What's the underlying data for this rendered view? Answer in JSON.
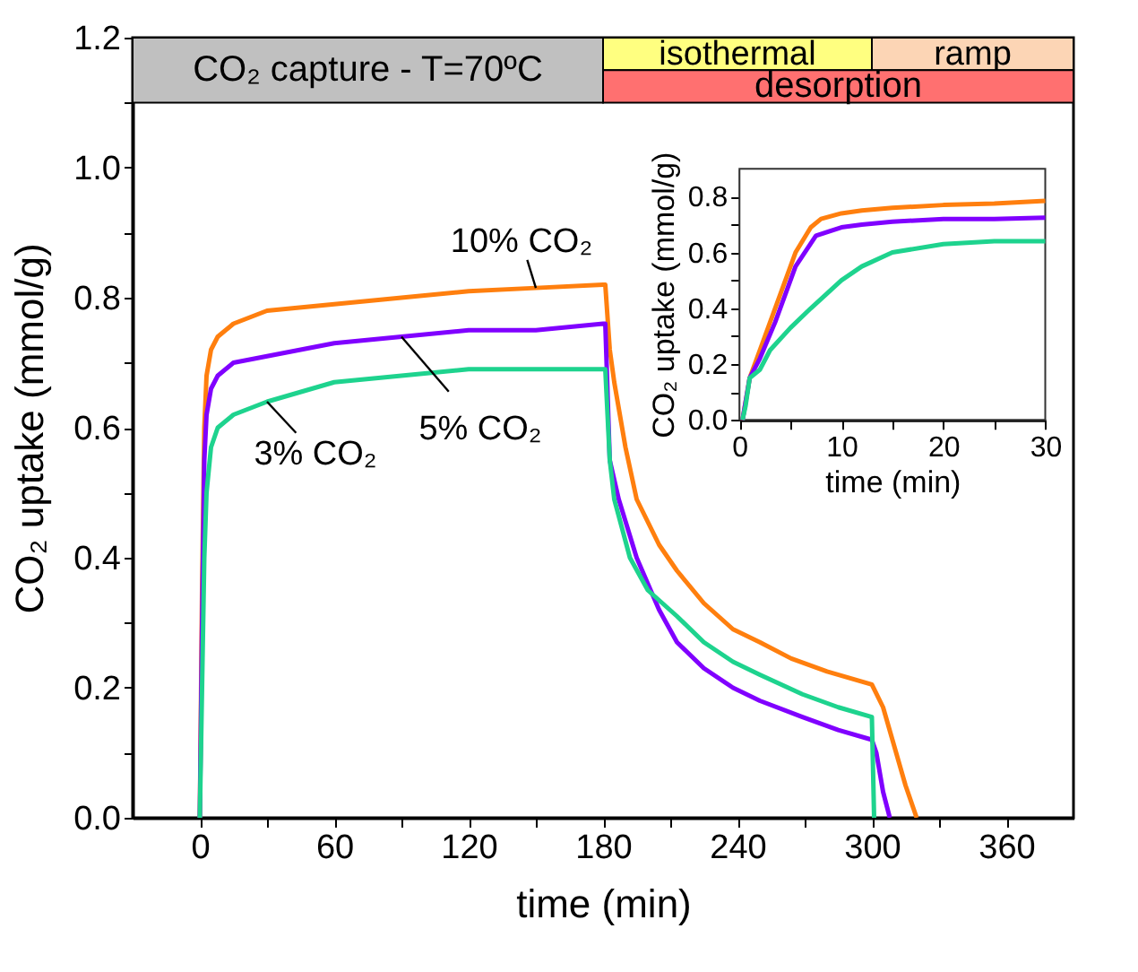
{
  "chart_data": [
    {
      "type": "line",
      "xlabel": "time (min)",
      "ylabel": "CO₂ uptake (mmol/g)",
      "xlim": [
        -30,
        390
      ],
      "ylim": [
        0,
        1.2
      ],
      "xticks": [
        0,
        {
          "value": 30,
          "label": null
        },
        60,
        {
          "value": 90,
          "label": null
        },
        120,
        {
          "value": 150,
          "label": null
        },
        180,
        {
          "value": 210,
          "label": null
        },
        240,
        {
          "value": 270,
          "label": null
        },
        300,
        {
          "value": 330,
          "label": null
        },
        360
      ],
      "yticks": [
        {
          "value": 0,
          "label": "0.0"
        },
        {
          "value": 0.1,
          "label": null
        },
        {
          "value": 0.2,
          "label": "0.2"
        },
        {
          "value": 0.3,
          "label": null
        },
        {
          "value": 0.4,
          "label": "0.4"
        },
        {
          "value": 0.5,
          "label": null
        },
        {
          "value": 0.6,
          "label": "0.6"
        },
        {
          "value": 0.7,
          "label": null
        },
        {
          "value": 0.8,
          "label": "0.8"
        },
        {
          "value": 0.9,
          "label": null
        },
        {
          "value": 1.0,
          "label": "1.0"
        },
        {
          "value": 1.1,
          "label": null
        },
        {
          "value": 1.2,
          "label": "1.2"
        }
      ],
      "series": [
        {
          "color": "#ff7f0e",
          "x": [
            0,
            1,
            2,
            3,
            5,
            8,
            15,
            30,
            60,
            90,
            120,
            150,
            180,
            181,
            183,
            185,
            190,
            195,
            205,
            213,
            225,
            238,
            250,
            264,
            280,
            300,
            305,
            310,
            315,
            320
          ],
          "values": [
            0,
            0.35,
            0.6,
            0.68,
            0.72,
            0.74,
            0.76,
            0.78,
            0.79,
            0.8,
            0.81,
            0.815,
            0.82,
            0.82,
            0.72,
            0.67,
            0.57,
            0.49,
            0.42,
            0.38,
            0.33,
            0.29,
            0.27,
            0.245,
            0.225,
            0.205,
            0.17,
            0.11,
            0.05,
            0
          ]
        },
        {
          "color": "#8000ff",
          "x": [
            0,
            1,
            2,
            3,
            5,
            8,
            15,
            30,
            60,
            90,
            120,
            150,
            180,
            181,
            183,
            187,
            195,
            205,
            213,
            225,
            238,
            250,
            269,
            285,
            300,
            302,
            305,
            308
          ],
          "values": [
            0,
            0.3,
            0.55,
            0.62,
            0.66,
            0.68,
            0.7,
            0.71,
            0.73,
            0.74,
            0.75,
            0.75,
            0.76,
            0.76,
            0.55,
            0.49,
            0.4,
            0.32,
            0.27,
            0.23,
            0.2,
            0.18,
            0.155,
            0.135,
            0.12,
            0.1,
            0.04,
            0
          ]
        },
        {
          "color": "#1ed38e",
          "x": [
            0,
            1,
            2,
            3,
            5,
            8,
            15,
            30,
            60,
            90,
            120,
            150,
            180,
            181,
            183,
            185,
            192,
            200,
            213,
            225,
            238,
            250,
            269,
            285,
            300,
            301
          ],
          "values": [
            0,
            0.2,
            0.4,
            0.5,
            0.57,
            0.6,
            0.62,
            0.64,
            0.67,
            0.68,
            0.69,
            0.69,
            0.69,
            0.69,
            0.55,
            0.49,
            0.4,
            0.35,
            0.31,
            0.27,
            0.24,
            0.22,
            0.19,
            0.17,
            0.155,
            0
          ]
        }
      ],
      "bands": [
        {
          "axis": "x",
          "from": -30,
          "to": 180,
          "label": "CO₂ capture - T=70ºC",
          "color": "#c0c0c0"
        },
        {
          "axis": "x",
          "from": 180,
          "to": 300,
          "label": "isothermal",
          "color": "#ffff80"
        },
        {
          "axis": "x",
          "from": 300,
          "to": 390,
          "label": "ramp",
          "color": "#fcd5b5"
        },
        {
          "axis": "x",
          "from": 180,
          "to": 390,
          "label": "desorption",
          "color": "#ff7070"
        }
      ],
      "annotations": [
        {
          "text": "10% CO₂",
          "x": 150,
          "y": 0.815
        },
        {
          "text": "5% CO₂",
          "x": 90,
          "y": 0.74
        },
        {
          "text": "3% CO₂",
          "x": 30,
          "y": 0.64
        }
      ],
      "grid": false
    },
    {
      "type": "line",
      "xlabel": "time (min)",
      "ylabel": "CO₂ uptake (mmol/g)",
      "xlim": [
        0,
        30
      ],
      "ylim": [
        0,
        0.9
      ],
      "xticks": [
        0,
        {
          "value": 5,
          "label": null
        },
        10,
        {
          "value": 15,
          "label": null
        },
        20,
        {
          "value": 25,
          "label": null
        },
        30
      ],
      "yticks": [
        {
          "value": 0,
          "label": "0.0"
        },
        {
          "value": 0.1,
          "label": null
        },
        {
          "value": 0.2,
          "label": "0.2"
        },
        {
          "value": 0.3,
          "label": null
        },
        {
          "value": 0.4,
          "label": "0.4"
        },
        {
          "value": 0.5,
          "label": null
        },
        {
          "value": 0.6,
          "label": "0.6"
        },
        {
          "value": 0.7,
          "label": null
        },
        {
          "value": 0.8,
          "label": "0.8"
        }
      ],
      "series": [
        {
          "color": "#ff7f0e",
          "x": [
            0.3,
            1,
            2,
            3.5,
            5.5,
            7,
            8,
            10,
            12,
            15,
            20,
            25,
            30
          ],
          "values": [
            0,
            0.15,
            0.25,
            0.4,
            0.6,
            0.69,
            0.72,
            0.74,
            0.75,
            0.76,
            0.77,
            0.775,
            0.785
          ]
        },
        {
          "color": "#8000ff",
          "x": [
            0.3,
            1,
            2,
            3.5,
            5.5,
            7.5,
            10,
            12,
            15,
            20,
            25,
            30
          ],
          "values": [
            0,
            0.15,
            0.22,
            0.35,
            0.55,
            0.66,
            0.69,
            0.7,
            0.71,
            0.72,
            0.72,
            0.725
          ]
        },
        {
          "color": "#1ed38e",
          "x": [
            0.3,
            0.6,
            1,
            2,
            3,
            5,
            7,
            10,
            12,
            15,
            20,
            25,
            30
          ],
          "values": [
            0,
            0.05,
            0.15,
            0.18,
            0.25,
            0.33,
            0.4,
            0.5,
            0.55,
            0.6,
            0.63,
            0.64,
            0.64
          ]
        }
      ],
      "grid": false
    }
  ]
}
